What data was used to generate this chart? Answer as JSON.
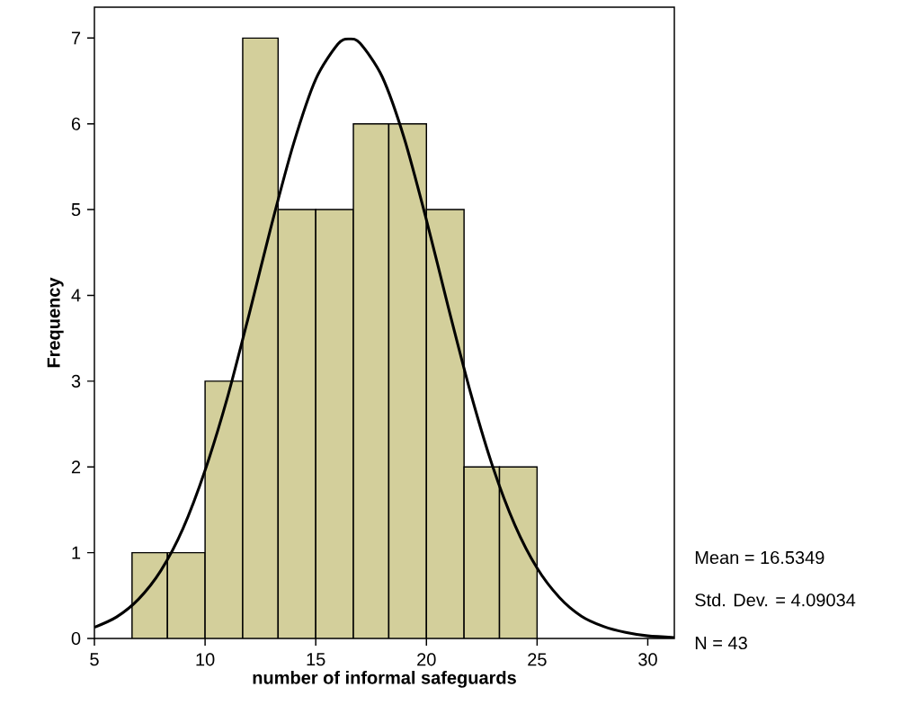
{
  "chart_data": {
    "type": "histogram",
    "xlabel": "number of informal safeguards",
    "ylabel": "Frequency",
    "bins": [
      6.7,
      8.3,
      10,
      11.7,
      13.3,
      15,
      16.7,
      18.3,
      20,
      21.7,
      23.3,
      25
    ],
    "values": [
      1,
      1,
      3,
      7,
      5,
      5,
      6,
      6,
      5,
      2,
      2
    ],
    "color": "#d3cf9b",
    "series": [
      {
        "type": "line",
        "color": "#000000",
        "x": [
          5,
          6,
          7,
          8,
          9,
          10,
          11,
          12,
          13,
          14,
          15,
          16,
          16.5,
          17,
          18,
          19,
          20,
          21,
          22,
          23,
          24,
          25,
          26,
          27,
          28,
          29,
          30,
          31.2
        ],
        "values": [
          0.13,
          0.25,
          0.46,
          0.79,
          1.28,
          1.96,
          2.8,
          3.79,
          4.82,
          5.77,
          6.52,
          6.93,
          6.99,
          6.94,
          6.55,
          5.83,
          4.88,
          3.85,
          2.86,
          2.0,
          1.32,
          0.82,
          0.48,
          0.26,
          0.14,
          0.07,
          0.03,
          0.01
        ]
      }
    ],
    "xlim": [
      5,
      31.2
    ],
    "ylim": [
      0,
      7.36
    ],
    "xticks": [
      5,
      10,
      15,
      20,
      25,
      30
    ],
    "yticks": [
      0,
      1,
      2,
      3,
      4,
      5,
      6,
      7
    ],
    "grid": false,
    "annotations": [
      "Mean = 16.5349",
      "Std. Dev. = 4.09034",
      "N = 43"
    ]
  }
}
